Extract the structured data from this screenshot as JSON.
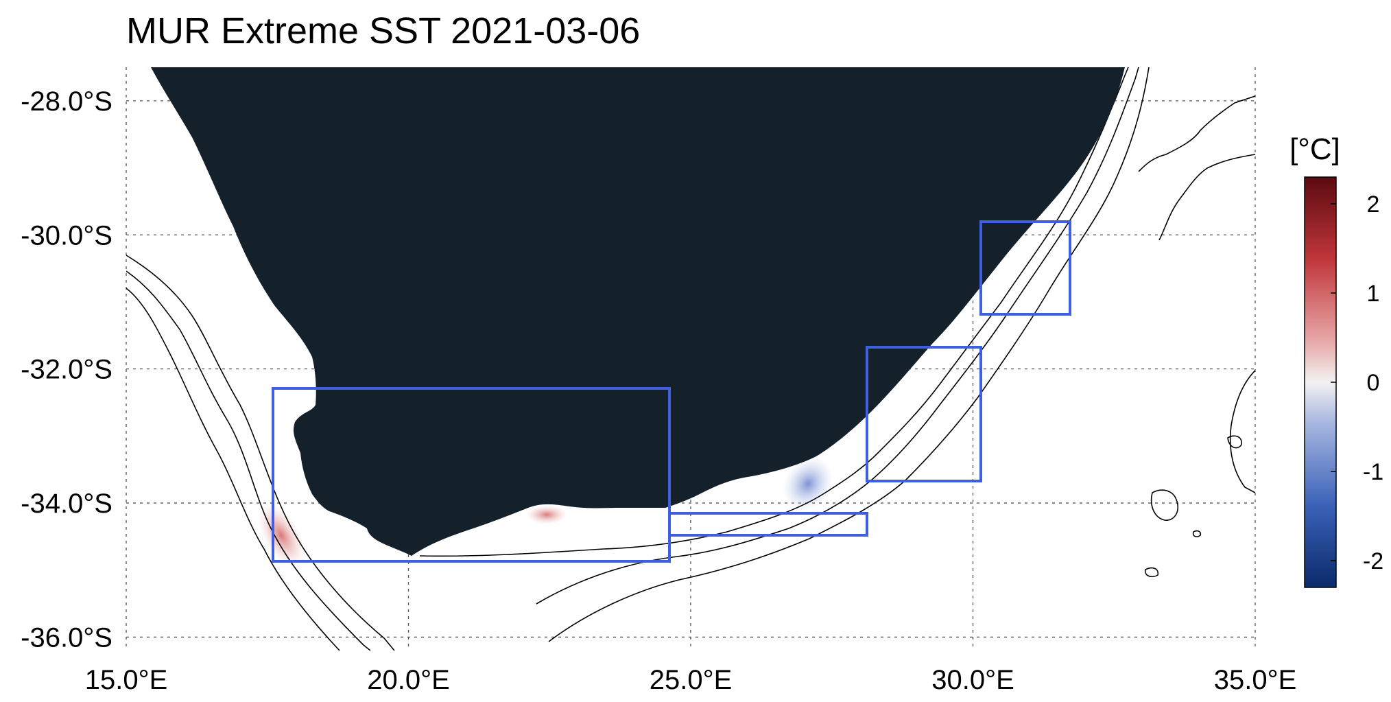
{
  "title": "MUR Extreme SST 2021-03-06",
  "map": {
    "lon_range": [
      15.0,
      35.0
    ],
    "lat_range": [
      -36.2,
      -27.5
    ],
    "lon_ticks": [
      {
        "value": 15.0,
        "label": "15.0°E"
      },
      {
        "value": 20.0,
        "label": "20.0°E"
      },
      {
        "value": 25.0,
        "label": "25.0°E"
      },
      {
        "value": 30.0,
        "label": "30.0°E"
      },
      {
        "value": 35.0,
        "label": "35.0°E"
      }
    ],
    "lat_ticks": [
      {
        "value": -28.0,
        "label": "-28.0°S"
      },
      {
        "value": -30.0,
        "label": "-30.0°S"
      },
      {
        "value": -32.0,
        "label": "-32.0°S"
      },
      {
        "value": -34.0,
        "label": "-34.0°S"
      },
      {
        "value": -36.0,
        "label": "-36.0°S"
      }
    ],
    "grid": true,
    "land_color": "#15212a",
    "region_box_color": "#3f5fe0"
  },
  "colorbar": {
    "label": "[°C]",
    "range": [
      -2.3,
      2.3
    ],
    "ticks": [
      {
        "value": 2,
        "label": "2"
      },
      {
        "value": 1,
        "label": "1"
      },
      {
        "value": 0,
        "label": "0"
      },
      {
        "value": -1,
        "label": "-1"
      },
      {
        "value": -2,
        "label": "-2"
      }
    ],
    "colors": [
      "#0b2a6b",
      "#3b62b8",
      "#a6b6e0",
      "#f2f2f2",
      "#e8a8a8",
      "#c0363a",
      "#5c0a10"
    ]
  }
}
